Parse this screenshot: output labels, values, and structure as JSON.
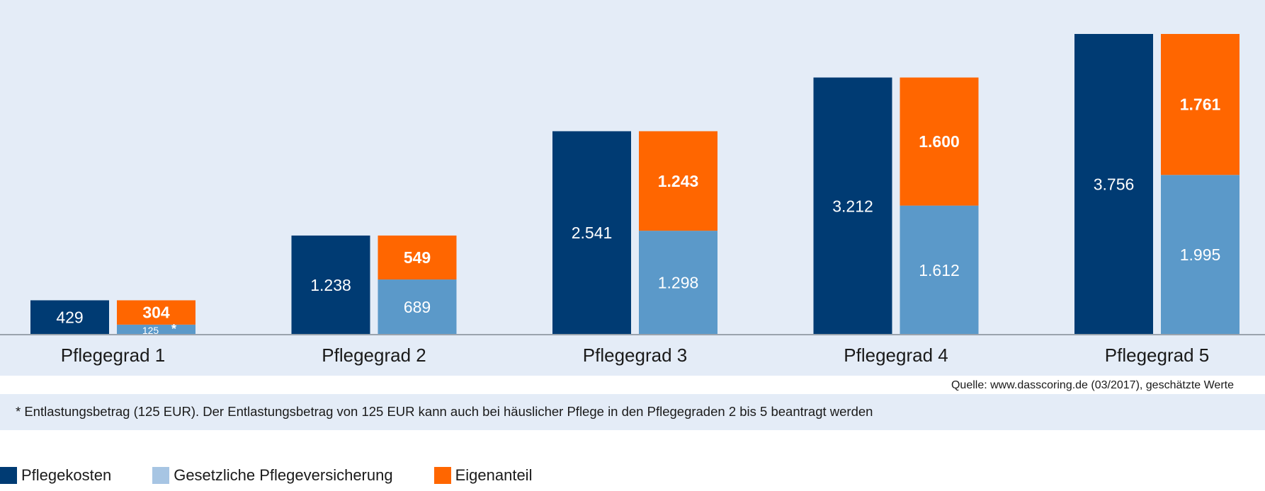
{
  "chart_data": {
    "type": "bar",
    "categories": [
      "Pflegegrad 1",
      "Pflegegrad 2",
      "Pflegegrad 3",
      "Pflegegrad 4",
      "Pflegegrad 5"
    ],
    "series": [
      {
        "name": "Pflegekosten",
        "values": [
          429,
          1238,
          2541,
          3212,
          3756
        ],
        "labels": [
          "429",
          "1.238",
          "2.541",
          "3.212",
          "3.756"
        ],
        "color": "#003b73",
        "stack": "kosten"
      },
      {
        "name": "Gesetzliche Pflegeversicherung",
        "values": [
          125,
          689,
          1298,
          1612,
          1995
        ],
        "labels": [
          "125",
          "689",
          "1.298",
          "1.612",
          "1.995"
        ],
        "color": "#5b99c9",
        "legend_color": "#a7c5e3",
        "stack": "anteil"
      },
      {
        "name": "Eigenanteil",
        "values": [
          304,
          549,
          1243,
          1600,
          1761
        ],
        "labels": [
          "304",
          "549",
          "1.243",
          "1.600",
          "1.761"
        ],
        "color": "#ff6600",
        "stack": "anteil"
      }
    ],
    "annotations": [
      {
        "category": "Pflegegrad 1",
        "series": "Gesetzliche Pflegeversicherung",
        "marker": "*"
      }
    ],
    "ylim": [
      0,
      3800
    ],
    "grid": false,
    "legend": "bottom-left",
    "title": "",
    "xlabel": "",
    "ylabel": ""
  },
  "source": "Quelle: www.dasscoring.de (03/2017), geschätzte Werte",
  "footnote": "* Entlastungsbetrag (125 EUR). Der Entlastungsbetrag von 125 EUR kann auch bei häuslicher Pflege in den Pflegegraden 2 bis 5 beantragt werden",
  "legend_items": [
    {
      "label": "Pflegekosten",
      "color": "#003b73"
    },
    {
      "label": "Gesetzliche Pflegeversicherung",
      "color": "#a7c5e3"
    },
    {
      "label": "Eigenanteil",
      "color": "#ff6600"
    }
  ]
}
